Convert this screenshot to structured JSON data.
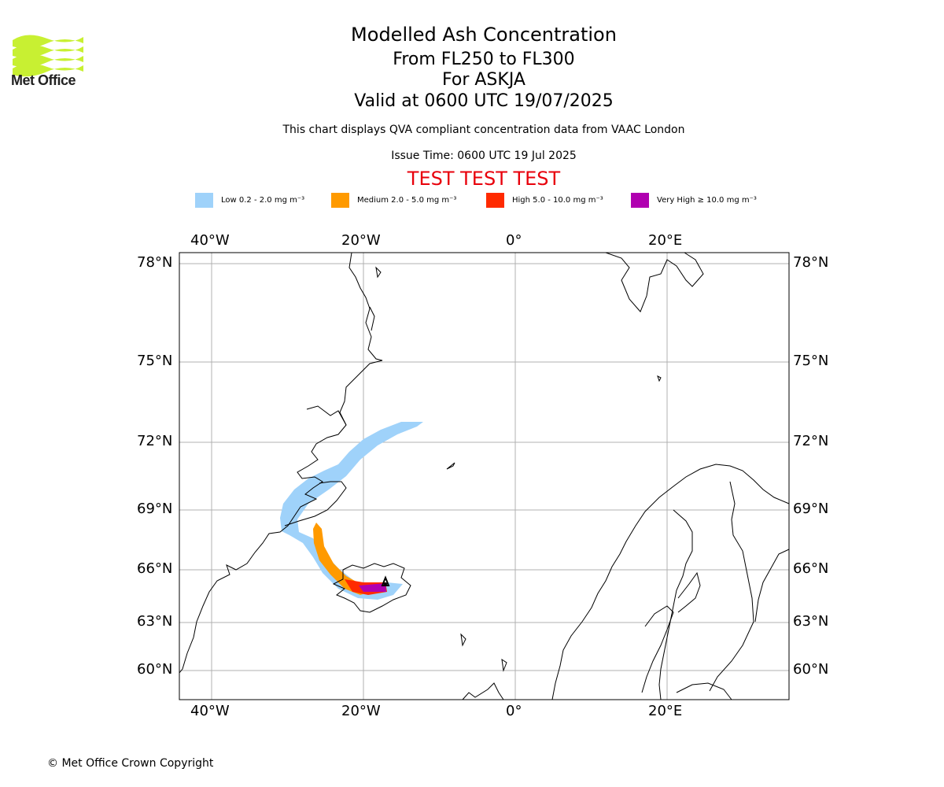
{
  "header": {
    "title": "Modelled Ash Concentration",
    "level_range": "From FL250 to FL300",
    "volcano": "For ASKJA",
    "valid_time": "Valid at 0600 UTC 19/07/2025",
    "compliance_note": "This chart displays QVA compliant concentration data from VAAC London",
    "issue_time": "Issue Time: 0600 UTC 19 Jul 2025",
    "test_banner": "TEST TEST TEST"
  },
  "logo": {
    "text": "Met Office",
    "color": "#c8f032",
    "icon": "met-office-waves-logo"
  },
  "legend": [
    {
      "label": "Low 0.2 - 2.0 mg m⁻³",
      "color": "#9fd2fa"
    },
    {
      "label": "Medium 2.0 - 5.0 mg m⁻³",
      "color": "#ff9a00"
    },
    {
      "label": "High 5.0 - 10.0 mg m⁻³",
      "color": "#ff2a00"
    },
    {
      "label": "Very High ≥ 10.0 mg m⁻³",
      "color": "#b000b0"
    }
  ],
  "axes": {
    "lon_labels": [
      "40°W",
      "20°W",
      "0°",
      "20°E"
    ],
    "lat_labels": [
      "78°N",
      "75°N",
      "72°N",
      "69°N",
      "66°N",
      "63°N",
      "60°N"
    ]
  },
  "footer": {
    "copyright": "© Met Office Crown Copyright"
  }
}
